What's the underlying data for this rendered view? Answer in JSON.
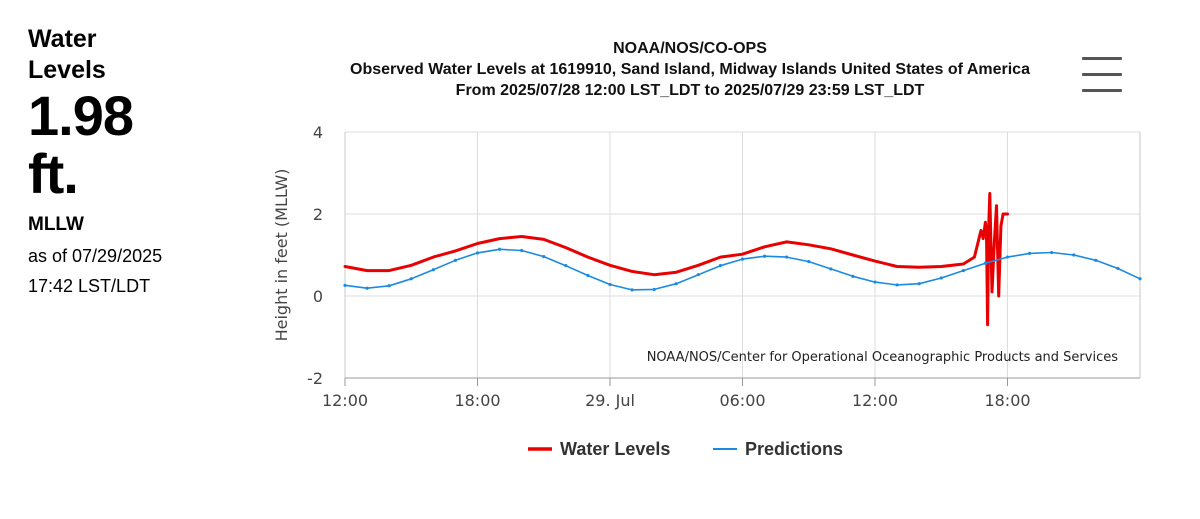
{
  "sidebar": {
    "title_line1": "Water",
    "title_line2": "Levels",
    "value": "1.98",
    "unit": "ft.",
    "datum": "MLLW",
    "as_of": "as of 07/29/2025",
    "time": "17:42 LST/LDT"
  },
  "menu": {
    "icon": "hamburger-menu-icon"
  },
  "colors": {
    "water_levels": "#e80000",
    "predictions": "#1d8ae0",
    "grid": "#dcdcdc"
  },
  "chart_data": {
    "type": "line",
    "title": "NOAA/NOS/CO-OPS",
    "subtitle": "Observed Water Levels at 1619910, Sand Island, Midway Islands United States of America",
    "subtitle2": "From 2025/07/28 12:00 LST_LDT to 2025/07/29 23:59 LST_LDT",
    "credit": "NOAA/NOS/Center for Operational Oceanographic Products and Services",
    "ylabel": "Height in feet (MLLW)",
    "xlabel": "",
    "x_unit": "hours since 2025/07/28 00:00",
    "xlim": [
      12,
      48
    ],
    "ylim": [
      -2,
      4
    ],
    "y_ticks": [
      -2,
      0,
      2,
      4
    ],
    "x_ticks": [
      {
        "x": 12,
        "label": "12:00"
      },
      {
        "x": 18,
        "label": "18:00"
      },
      {
        "x": 24,
        "label": "29. Jul"
      },
      {
        "x": 30,
        "label": "06:00"
      },
      {
        "x": 36,
        "label": "12:00"
      },
      {
        "x": 42,
        "label": "18:00"
      }
    ],
    "grid": true,
    "legend_position": "bottom-center",
    "series": [
      {
        "name": "Water Levels",
        "x": [
          12,
          13,
          14,
          15,
          16,
          17,
          18,
          19,
          20,
          21,
          22,
          23,
          24,
          25,
          26,
          27,
          28,
          29,
          30,
          31,
          32,
          33,
          34,
          35,
          36,
          37,
          38,
          39,
          40,
          40.5,
          40.8,
          40.9,
          41.0,
          41.05,
          41.1,
          41.15,
          41.2,
          41.3,
          41.4,
          41.5,
          41.6,
          41.7,
          41.8,
          42.0
        ],
        "values": [
          0.72,
          0.62,
          0.62,
          0.75,
          0.95,
          1.1,
          1.28,
          1.4,
          1.45,
          1.38,
          1.18,
          0.95,
          0.75,
          0.6,
          0.52,
          0.58,
          0.75,
          0.95,
          1.02,
          1.2,
          1.32,
          1.25,
          1.15,
          1.0,
          0.85,
          0.72,
          0.7,
          0.72,
          0.78,
          0.95,
          1.6,
          1.4,
          1.8,
          1.5,
          -0.7,
          1.7,
          2.5,
          0.1,
          1.3,
          2.2,
          0.0,
          1.7,
          2.0,
          2.0
        ],
        "style": "thick"
      },
      {
        "name": "Predictions",
        "x": [
          12,
          13,
          14,
          15,
          16,
          17,
          18,
          19,
          20,
          21,
          22,
          23,
          24,
          25,
          26,
          27,
          28,
          29,
          30,
          31,
          32,
          33,
          34,
          35,
          36,
          37,
          38,
          39,
          40,
          41,
          42,
          43,
          44,
          45,
          46,
          47,
          48
        ],
        "values": [
          0.26,
          0.19,
          0.25,
          0.42,
          0.64,
          0.87,
          1.05,
          1.14,
          1.11,
          0.96,
          0.74,
          0.5,
          0.28,
          0.15,
          0.16,
          0.3,
          0.52,
          0.74,
          0.9,
          0.97,
          0.95,
          0.84,
          0.66,
          0.48,
          0.34,
          0.27,
          0.3,
          0.44,
          0.62,
          0.8,
          0.95,
          1.04,
          1.06,
          1.0,
          0.87,
          0.67,
          0.42
        ],
        "style": "thin"
      }
    ]
  }
}
